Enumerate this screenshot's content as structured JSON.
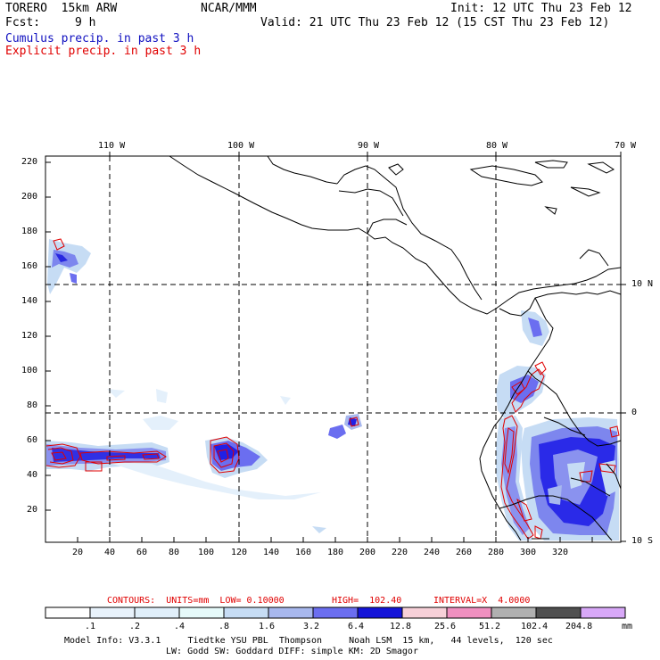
{
  "header": {
    "model": "TORERO  15km ARW",
    "org": "NCAR/MMM",
    "init": "Init: 12 UTC Thu 23 Feb 12",
    "fcst_label": "Fcst:",
    "fcst_value": "9 h",
    "valid": "Valid: 21 UTC Thu 23 Feb 12 (15 CST Thu 23 Feb 12)",
    "legend_cumulus": "Cumulus precip. in past 3 h",
    "legend_explicit": "Explicit precip. in past 3 h"
  },
  "map": {
    "lon_labels": [
      "110 W",
      "100 W",
      "90 W",
      "80 W",
      "70 W"
    ],
    "lat_labels": [
      "10 N",
      "0",
      "10 S"
    ],
    "x_ticks": [
      "20",
      "40",
      "60",
      "80",
      "100",
      "120",
      "140",
      "160",
      "180",
      "200",
      "220",
      "240",
      "260",
      "280",
      "300",
      "320"
    ],
    "y_ticks": [
      "20",
      "40",
      "60",
      "80",
      "100",
      "120",
      "140",
      "160",
      "180",
      "200",
      "220"
    ]
  },
  "contour_info": {
    "contours": "CONTOURS:  UNITS=mm  LOW= 0.10000",
    "high": "HIGH=  102.40",
    "interval": "INTERVAL=X  4.0000"
  },
  "colorbar": {
    "labels": [
      ".1",
      ".2",
      ".4",
      ".8",
      "1.6",
      "3.2",
      "6.4",
      "12.8",
      "25.6",
      "51.2",
      "102.4",
      "204.8"
    ],
    "units": "mm",
    "colors": [
      "#ffffff",
      "#e8f2fb",
      "#d9ecf9",
      "#e6fafa",
      "#c6dcf4",
      "#a8b8ee",
      "#6b6ef0",
      "#2020e6",
      "#1414c8",
      "#f7d0d8",
      "#f090c0",
      "#b0b0b0",
      "#505050",
      "#d8a8f8"
    ]
  },
  "footer": {
    "line1": "Model Info: V3.3.1     Tiedtke YSU PBL  Thompson     Noah LSM  15 km,   44 levels,  120 sec",
    "line2": "LW: Godd SW: Goddard DIFF: simple KM: 2D Smagor"
  }
}
